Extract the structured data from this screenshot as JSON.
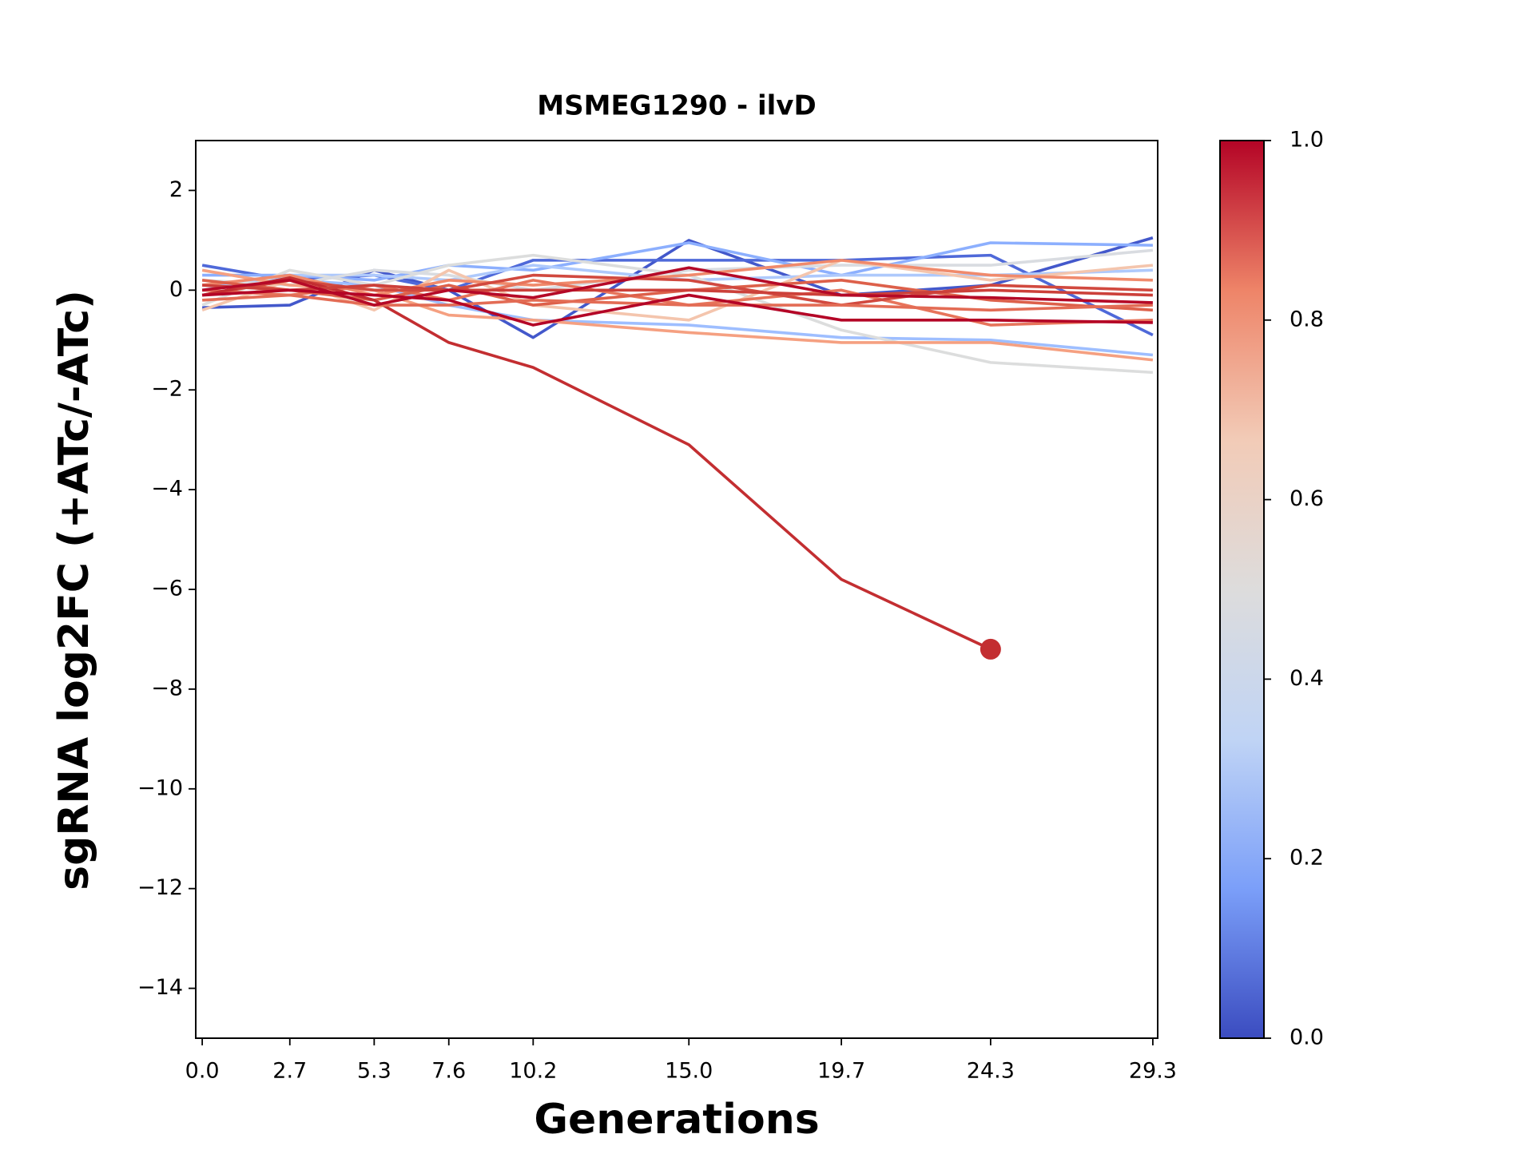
{
  "chart_data": {
    "type": "line",
    "title": "MSMEG1290 - ilvD",
    "xlabel": "Generations",
    "ylabel": "sgRNA log2FC (+ATc/-ATc)",
    "x": [
      0,
      2.7,
      5.3,
      7.6,
      10.2,
      15.0,
      19.7,
      24.3,
      29.3
    ],
    "xlim": [
      -0.2,
      29.45
    ],
    "xticks": [
      {
        "value": 0,
        "label": "0.0"
      },
      2.7,
      5.3,
      7.6,
      10.2,
      {
        "value": 15,
        "label": "15.0"
      },
      19.7,
      24.3,
      29.3
    ],
    "ylim": [
      -15,
      3
    ],
    "yticks": [
      {
        "value": -14,
        "label": "−14"
      },
      {
        "value": -12,
        "label": "−12"
      },
      {
        "value": -10,
        "label": "−10"
      },
      {
        "value": -8,
        "label": "−8"
      },
      {
        "value": -6,
        "label": "−6"
      },
      {
        "value": -4,
        "label": "−4"
      },
      {
        "value": -2,
        "label": "−2"
      },
      0,
      2
    ],
    "grid": false,
    "series": [
      {
        "color": "#4358cb",
        "values": [
          -0.35,
          -0.3,
          0.4,
          0.0,
          -0.95,
          1.0,
          -0.1,
          0.1,
          1.05
        ]
      },
      {
        "color": "#4f69d9",
        "values": [
          0.5,
          0.2,
          0.3,
          0.0,
          0.6,
          0.6,
          0.6,
          0.7,
          -0.9
        ]
      },
      {
        "color": "#8caffe",
        "values": [
          0.3,
          0.3,
          0.2,
          0.5,
          0.4,
          0.95,
          0.3,
          0.95,
          0.9
        ]
      },
      {
        "color": "#9ebeff",
        "values": [
          0.1,
          0.2,
          0.1,
          -0.3,
          -0.6,
          -0.7,
          -0.95,
          -1.0,
          -1.3
        ]
      },
      {
        "color": "#aec9fc",
        "values": [
          0.0,
          0.3,
          0.3,
          0.2,
          0.5,
          0.2,
          0.3,
          0.3,
          0.4
        ]
      },
      {
        "color": "#dcdddd",
        "values": [
          -0.3,
          0.4,
          0.1,
          0.5,
          0.7,
          0.3,
          -0.8,
          -1.45,
          -1.65
        ]
      },
      {
        "color": "#d9dce1",
        "values": [
          0.2,
          0.1,
          0.4,
          0.3,
          0.0,
          0.4,
          0.5,
          0.5,
          0.8
        ]
      },
      {
        "color": "#f4c5ad",
        "values": [
          -0.4,
          0.2,
          -0.4,
          0.4,
          -0.3,
          -0.6,
          0.6,
          0.2,
          0.5
        ]
      },
      {
        "color": "#f5a081",
        "values": [
          0.4,
          0.1,
          0.0,
          -0.5,
          -0.6,
          -0.85,
          -1.05,
          -1.05,
          -1.4
        ]
      },
      {
        "color": "#f08a6c",
        "values": [
          0.1,
          0.3,
          -0.1,
          0.2,
          0.1,
          0.3,
          0.6,
          0.3,
          0.2
        ]
      },
      {
        "color": "#e7745b",
        "values": [
          0.0,
          -0.1,
          0.1,
          -0.2,
          0.2,
          -0.3,
          0.0,
          -0.7,
          -0.6
        ]
      },
      {
        "color": "#dd604a",
        "values": [
          0.2,
          0.0,
          -0.2,
          0.1,
          -0.3,
          0.0,
          0.2,
          -0.2,
          -0.4
        ]
      },
      {
        "color": "#d1493f",
        "values": [
          -0.1,
          0.2,
          0.0,
          0.0,
          0.3,
          0.2,
          -0.3,
          0.1,
          0.0
        ]
      },
      {
        "color": "#c32e31",
        "end_marker": true,
        "values": [
          -0.1,
          0.25,
          -0.2,
          -1.05,
          -1.55,
          -3.1,
          -5.8,
          -7.2,
          null
        ]
      },
      {
        "color": "#cc403a",
        "values": [
          0.1,
          0.0,
          0.1,
          0.0,
          0.0,
          0.0,
          -0.1,
          0.0,
          -0.1
        ]
      },
      {
        "color": "#e36c55",
        "values": [
          -0.2,
          -0.1,
          -0.3,
          -0.3,
          -0.2,
          -0.3,
          -0.3,
          -0.4,
          -0.3
        ]
      },
      {
        "color": "#b50927",
        "values": [
          0.0,
          0.2,
          -0.3,
          0.0,
          -0.15,
          0.45,
          -0.1,
          -0.15,
          -0.25
        ]
      },
      {
        "color": "#b40426",
        "values": [
          -0.1,
          0.0,
          -0.1,
          -0.2,
          -0.7,
          -0.1,
          -0.6,
          -0.6,
          -0.65
        ]
      }
    ],
    "colorbar": {
      "lim": [
        0,
        1
      ],
      "colors": [
        "#3b4cc0",
        "#7b9ff9",
        "#c0d4f5",
        "#dddcdc",
        "#f2cbb7",
        "#ee8468",
        "#b40426"
      ],
      "ticks": [
        {
          "value": 0,
          "label": "0.0"
        },
        {
          "value": 0.2,
          "label": "0.2"
        },
        {
          "value": 0.4,
          "label": "0.4"
        },
        {
          "value": 0.6,
          "label": "0.6"
        },
        {
          "value": 0.8,
          "label": "0.8"
        },
        {
          "value": 1,
          "label": "1.0"
        }
      ]
    }
  }
}
